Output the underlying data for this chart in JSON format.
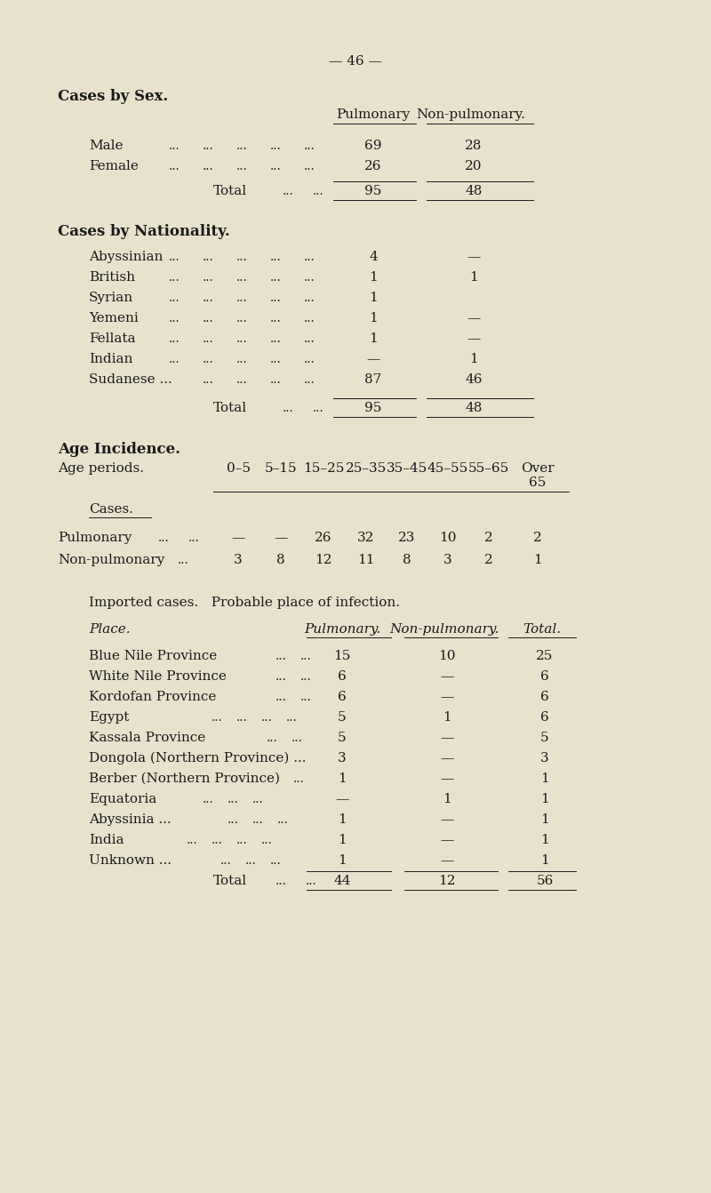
{
  "page_number": "— 46 —",
  "bg_color": "#e8e2cc",
  "text_color": "#1a1a1a",
  "section1_title": "Cases by Sex.",
  "section2_title": "Cases by Nationality.",
  "section3_title": "Age Incidence.",
  "section4_title": "Imported cases.",
  "section4_subtitle": "Probable place of infection.",
  "section1_rows": [
    {
      "label": "Male",
      "pulm": "69",
      "non_pulm": "28"
    },
    {
      "label": "Female",
      "pulm": "26",
      "non_pulm": "20"
    },
    {
      "label": "Total",
      "pulm": "95",
      "non_pulm": "48",
      "is_total": true
    }
  ],
  "section2_rows": [
    {
      "label": "Abyssinian",
      "pulm": "4",
      "non_pulm": "—"
    },
    {
      "label": "British",
      "pulm": "1",
      "non_pulm": "1"
    },
    {
      "label": "Syrian",
      "pulm": "1",
      "non_pulm": ""
    },
    {
      "label": "Yemeni",
      "pulm": "1",
      "non_pulm": "—"
    },
    {
      "label": "Fellata",
      "pulm": "1",
      "non_pulm": "—"
    },
    {
      "label": "Indian",
      "pulm": "—",
      "non_pulm": "1"
    },
    {
      "label": "Sudanese ...",
      "pulm": "87",
      "non_pulm": "46"
    },
    {
      "label": "Total",
      "pulm": "95",
      "non_pulm": "48",
      "is_total": true
    }
  ],
  "section3_age_cols": [
    "0–5",
    "5–15",
    "15–25",
    "25–35",
    "35–45",
    "45–55",
    "55–65",
    "Over 65"
  ],
  "section3_rows": [
    {
      "label": "Pulmonary",
      "values": [
        "—",
        "—",
        "26",
        "32",
        "23",
        "10",
        "2",
        "2"
      ]
    },
    {
      "label": "Non-pulmonary",
      "values": [
        "3",
        "8",
        "12",
        "11",
        "8",
        "3",
        "2",
        "1"
      ]
    }
  ],
  "section4_rows": [
    {
      "label": "Blue Nile Province",
      "pulm": "15",
      "non_pulm": "10",
      "total": "25"
    },
    {
      "label": "White Nile Province",
      "pulm": "6",
      "non_pulm": "—",
      "total": "6"
    },
    {
      "label": "Kordofan Province",
      "pulm": "6",
      "non_pulm": "—",
      "total": "6"
    },
    {
      "label": "Egypt",
      "pulm": "5",
      "non_pulm": "1",
      "total": "6"
    },
    {
      "label": "Kassala Province",
      "pulm": "5",
      "non_pulm": "—",
      "total": "5"
    },
    {
      "label": "Dongola (Northern Province) ...",
      "pulm": "3",
      "non_pulm": "—",
      "total": "3"
    },
    {
      "label": "Berber (Northern Province)",
      "pulm": "1",
      "non_pulm": "—",
      "total": "1"
    },
    {
      "label": "Equatoria",
      "pulm": "—",
      "non_pulm": "1",
      "total": "1"
    },
    {
      "label": "Abyssinia ...",
      "pulm": "1",
      "non_pulm": "—",
      "total": "1"
    },
    {
      "label": "India",
      "pulm": "1",
      "non_pulm": "—",
      "total": "1"
    },
    {
      "label": "Unknown ...",
      "pulm": "1",
      "non_pulm": "—",
      "total": "1"
    },
    {
      "label": "Total",
      "pulm": "44",
      "non_pulm": "12",
      "total": "56",
      "is_total": true
    }
  ]
}
